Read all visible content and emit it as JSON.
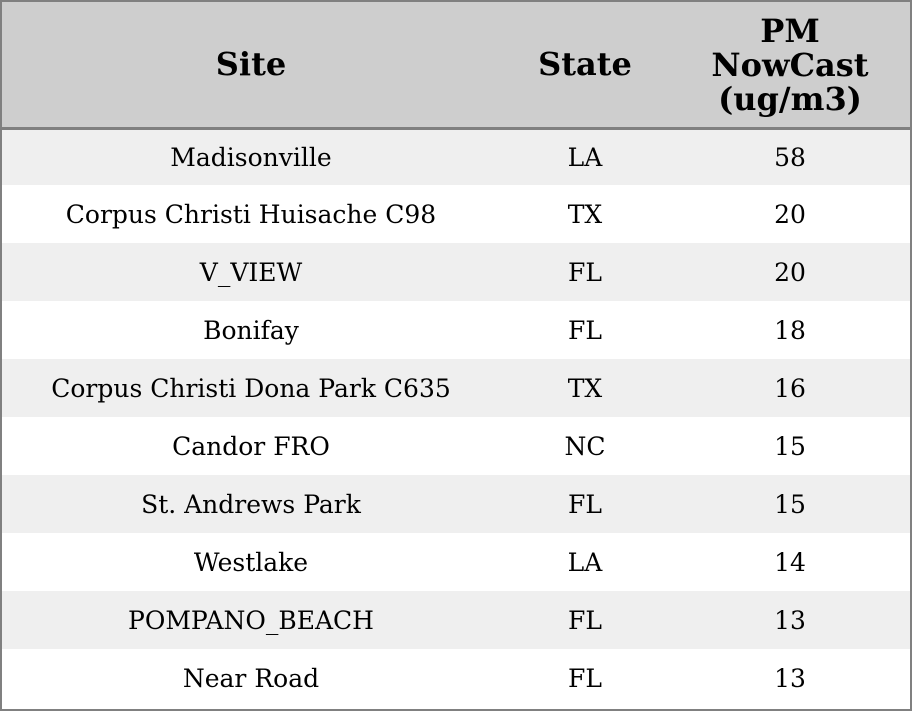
{
  "chart_data": {
    "type": "table",
    "columns": [
      "Site",
      "State",
      "PM NowCast (ug/m3)"
    ],
    "header_lines": {
      "site": "Site",
      "state": "State",
      "pm": [
        "PM",
        "NowCast",
        "(ug/m3)"
      ]
    },
    "rows": [
      {
        "site": "Madisonville",
        "state": "LA",
        "pm": "58"
      },
      {
        "site": "Corpus Christi Huisache C98",
        "state": "TX",
        "pm": "20"
      },
      {
        "site": "V_VIEW",
        "state": "FL",
        "pm": "20"
      },
      {
        "site": "Bonifay",
        "state": "FL",
        "pm": "18"
      },
      {
        "site": "Corpus Christi Dona Park C635",
        "state": "TX",
        "pm": "16"
      },
      {
        "site": "Candor FRO",
        "state": "NC",
        "pm": "15"
      },
      {
        "site": "St. Andrews Park",
        "state": "FL",
        "pm": "15"
      },
      {
        "site": "Westlake",
        "state": "LA",
        "pm": "14"
      },
      {
        "site": "POMPANO_BEACH",
        "state": "FL",
        "pm": "13"
      },
      {
        "site": "Near Road",
        "state": "FL",
        "pm": "13"
      }
    ]
  },
  "colors": {
    "header_bg": "#cecece",
    "row_odd": "#efefef",
    "row_even": "#ffffff",
    "border": "#808080"
  }
}
